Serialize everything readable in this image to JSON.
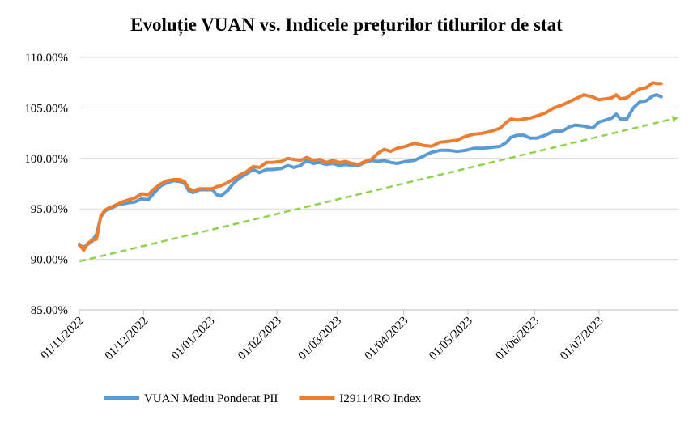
{
  "chart_data": {
    "type": "line",
    "title": "Evoluție VUAN vs. Indicele prețurilor titlurilor de stat",
    "xlabel": "",
    "ylabel": "",
    "ylim": [
      85,
      110
    ],
    "y_ticks": [
      85,
      90,
      95,
      100,
      105,
      110
    ],
    "y_tick_labels": [
      "85.00%",
      "90.00%",
      "95.00%",
      "100.00%",
      "105.00%",
      "110.00%"
    ],
    "x_range": [
      "2022-11-01",
      "2023-08-07"
    ],
    "x_ticks": [
      "2022-11-01",
      "2022-12-01",
      "2023-01-01",
      "2023-02-01",
      "2023-03-01",
      "2023-04-01",
      "2023-05-01",
      "2023-06-01",
      "2023-07-01"
    ],
    "x_tick_labels": [
      "01/11/2022",
      "01/12/2022",
      "01/01/2023",
      "01/02/2023",
      "01/03/2023",
      "01/04/2023",
      "01/05/2023",
      "01/06/2023",
      "01/07/2023"
    ],
    "grid": "horizontal",
    "legend": "bottom",
    "series": [
      {
        "name": "VUAN Mediu Ponderat PII",
        "color": "#5b9bd5",
        "points": [
          [
            "2022-11-01",
            91.4
          ],
          [
            "2022-11-03",
            91.2
          ],
          [
            "2022-11-05",
            91.5
          ],
          [
            "2022-11-07",
            91.8
          ],
          [
            "2022-11-09",
            92.5
          ],
          [
            "2022-11-11",
            94.2
          ],
          [
            "2022-11-13",
            94.8
          ],
          [
            "2022-11-15",
            95.0
          ],
          [
            "2022-11-17",
            95.2
          ],
          [
            "2022-11-19",
            95.4
          ],
          [
            "2022-11-21",
            95.5
          ],
          [
            "2022-11-24",
            95.6
          ],
          [
            "2022-11-27",
            95.7
          ],
          [
            "2022-11-30",
            96.0
          ],
          [
            "2022-12-03",
            95.9
          ],
          [
            "2022-12-06",
            96.6
          ],
          [
            "2022-12-09",
            97.3
          ],
          [
            "2022-12-12",
            97.6
          ],
          [
            "2022-12-15",
            97.8
          ],
          [
            "2022-12-18",
            97.7
          ],
          [
            "2022-12-20",
            97.5
          ],
          [
            "2022-12-22",
            96.8
          ],
          [
            "2022-12-24",
            96.6
          ],
          [
            "2022-12-27",
            96.9
          ],
          [
            "2022-12-30",
            96.9
          ],
          [
            "2023-01-02",
            96.9
          ],
          [
            "2023-01-04",
            96.4
          ],
          [
            "2023-01-06",
            96.3
          ],
          [
            "2023-01-09",
            96.8
          ],
          [
            "2023-01-12",
            97.6
          ],
          [
            "2023-01-15",
            98.1
          ],
          [
            "2023-01-18",
            98.5
          ],
          [
            "2023-01-21",
            98.9
          ],
          [
            "2023-01-24",
            98.6
          ],
          [
            "2023-01-27",
            98.9
          ],
          [
            "2023-01-30",
            98.9
          ],
          [
            "2023-02-03",
            99.0
          ],
          [
            "2023-02-06",
            99.3
          ],
          [
            "2023-02-09",
            99.1
          ],
          [
            "2023-02-12",
            99.3
          ],
          [
            "2023-02-15",
            99.8
          ],
          [
            "2023-02-18",
            99.5
          ],
          [
            "2023-02-21",
            99.6
          ],
          [
            "2023-02-24",
            99.4
          ],
          [
            "2023-02-27",
            99.5
          ],
          [
            "2023-03-02",
            99.3
          ],
          [
            "2023-03-05",
            99.4
          ],
          [
            "2023-03-08",
            99.3
          ],
          [
            "2023-03-11",
            99.3
          ],
          [
            "2023-03-14",
            99.6
          ],
          [
            "2023-03-17",
            99.8
          ],
          [
            "2023-03-20",
            99.7
          ],
          [
            "2023-03-23",
            99.8
          ],
          [
            "2023-03-26",
            99.6
          ],
          [
            "2023-03-29",
            99.5
          ],
          [
            "2023-04-02",
            99.7
          ],
          [
            "2023-04-06",
            99.8
          ],
          [
            "2023-04-10",
            100.2
          ],
          [
            "2023-04-14",
            100.6
          ],
          [
            "2023-04-18",
            100.8
          ],
          [
            "2023-04-22",
            100.8
          ],
          [
            "2023-04-26",
            100.7
          ],
          [
            "2023-04-30",
            100.8
          ],
          [
            "2023-05-04",
            101.0
          ],
          [
            "2023-05-08",
            101.0
          ],
          [
            "2023-05-12",
            101.1
          ],
          [
            "2023-05-16",
            101.2
          ],
          [
            "2023-05-19",
            101.6
          ],
          [
            "2023-05-21",
            102.1
          ],
          [
            "2023-05-24",
            102.3
          ],
          [
            "2023-05-27",
            102.3
          ],
          [
            "2023-05-30",
            102.0
          ],
          [
            "2023-06-02",
            102.0
          ],
          [
            "2023-06-06",
            102.3
          ],
          [
            "2023-06-10",
            102.7
          ],
          [
            "2023-06-14",
            102.7
          ],
          [
            "2023-06-17",
            103.1
          ],
          [
            "2023-06-20",
            103.3
          ],
          [
            "2023-06-24",
            103.2
          ],
          [
            "2023-06-28",
            103.0
          ],
          [
            "2023-07-01",
            103.6
          ],
          [
            "2023-07-04",
            103.8
          ],
          [
            "2023-07-07",
            104.0
          ],
          [
            "2023-07-09",
            104.4
          ],
          [
            "2023-07-11",
            103.9
          ],
          [
            "2023-07-14",
            103.9
          ],
          [
            "2023-07-17",
            105.0
          ],
          [
            "2023-07-20",
            105.6
          ],
          [
            "2023-07-23",
            105.7
          ],
          [
            "2023-07-26",
            106.2
          ],
          [
            "2023-07-28",
            106.3
          ],
          [
            "2023-07-30",
            106.1
          ]
        ]
      },
      {
        "name": "I29114RO Index",
        "color": "#ed7d31",
        "points": [
          [
            "2022-11-01",
            91.5
          ],
          [
            "2022-11-03",
            90.9
          ],
          [
            "2022-11-05",
            91.6
          ],
          [
            "2022-11-07",
            91.9
          ],
          [
            "2022-11-09",
            92.0
          ],
          [
            "2022-11-11",
            94.3
          ],
          [
            "2022-11-13",
            94.9
          ],
          [
            "2022-11-15",
            95.1
          ],
          [
            "2022-11-17",
            95.3
          ],
          [
            "2022-11-19",
            95.5
          ],
          [
            "2022-11-21",
            95.7
          ],
          [
            "2022-11-24",
            95.9
          ],
          [
            "2022-11-27",
            96.1
          ],
          [
            "2022-11-30",
            96.5
          ],
          [
            "2022-12-03",
            96.4
          ],
          [
            "2022-12-06",
            97.0
          ],
          [
            "2022-12-09",
            97.5
          ],
          [
            "2022-12-12",
            97.8
          ],
          [
            "2022-12-15",
            97.9
          ],
          [
            "2022-12-18",
            97.9
          ],
          [
            "2022-12-20",
            97.7
          ],
          [
            "2022-12-22",
            97.0
          ],
          [
            "2022-12-24",
            96.8
          ],
          [
            "2022-12-27",
            97.0
          ],
          [
            "2022-12-30",
            97.0
          ],
          [
            "2023-01-02",
            97.0
          ],
          [
            "2023-01-04",
            97.2
          ],
          [
            "2023-01-06",
            97.3
          ],
          [
            "2023-01-09",
            97.6
          ],
          [
            "2023-01-12",
            98.0
          ],
          [
            "2023-01-15",
            98.4
          ],
          [
            "2023-01-18",
            98.7
          ],
          [
            "2023-01-21",
            99.2
          ],
          [
            "2023-01-24",
            99.1
          ],
          [
            "2023-01-27",
            99.6
          ],
          [
            "2023-01-30",
            99.6
          ],
          [
            "2023-02-03",
            99.7
          ],
          [
            "2023-02-06",
            100.0
          ],
          [
            "2023-02-09",
            99.9
          ],
          [
            "2023-02-12",
            99.8
          ],
          [
            "2023-02-15",
            100.1
          ],
          [
            "2023-02-18",
            99.8
          ],
          [
            "2023-02-21",
            99.9
          ],
          [
            "2023-02-24",
            99.6
          ],
          [
            "2023-02-27",
            99.8
          ],
          [
            "2023-03-02",
            99.6
          ],
          [
            "2023-03-05",
            99.7
          ],
          [
            "2023-03-08",
            99.5
          ],
          [
            "2023-03-11",
            99.4
          ],
          [
            "2023-03-14",
            99.7
          ],
          [
            "2023-03-17",
            99.9
          ],
          [
            "2023-03-20",
            100.5
          ],
          [
            "2023-03-23",
            100.9
          ],
          [
            "2023-03-26",
            100.7
          ],
          [
            "2023-03-29",
            101.0
          ],
          [
            "2023-04-02",
            101.2
          ],
          [
            "2023-04-06",
            101.5
          ],
          [
            "2023-04-10",
            101.3
          ],
          [
            "2023-04-14",
            101.2
          ],
          [
            "2023-04-18",
            101.6
          ],
          [
            "2023-04-22",
            101.7
          ],
          [
            "2023-04-26",
            101.8
          ],
          [
            "2023-04-30",
            102.2
          ],
          [
            "2023-05-04",
            102.4
          ],
          [
            "2023-05-08",
            102.5
          ],
          [
            "2023-05-12",
            102.7
          ],
          [
            "2023-05-16",
            103.0
          ],
          [
            "2023-05-19",
            103.6
          ],
          [
            "2023-05-21",
            103.9
          ],
          [
            "2023-05-24",
            103.8
          ],
          [
            "2023-05-27",
            103.9
          ],
          [
            "2023-05-30",
            104.0
          ],
          [
            "2023-06-02",
            104.2
          ],
          [
            "2023-06-06",
            104.5
          ],
          [
            "2023-06-10",
            105.0
          ],
          [
            "2023-06-14",
            105.3
          ],
          [
            "2023-06-17",
            105.6
          ],
          [
            "2023-06-20",
            105.9
          ],
          [
            "2023-06-24",
            106.3
          ],
          [
            "2023-06-28",
            106.1
          ],
          [
            "2023-07-01",
            105.8
          ],
          [
            "2023-07-04",
            105.9
          ],
          [
            "2023-07-07",
            106.0
          ],
          [
            "2023-07-09",
            106.3
          ],
          [
            "2023-07-11",
            105.9
          ],
          [
            "2023-07-14",
            106.0
          ],
          [
            "2023-07-17",
            106.5
          ],
          [
            "2023-07-20",
            106.9
          ],
          [
            "2023-07-23",
            107.0
          ],
          [
            "2023-07-26",
            107.5
          ],
          [
            "2023-07-28",
            107.4
          ],
          [
            "2023-07-30",
            107.4
          ]
        ]
      },
      {
        "name": "",
        "color": "#92d050",
        "style": "dashed-arrow",
        "points": [
          [
            "2022-11-01",
            89.8
          ],
          [
            "2023-08-06",
            104.0
          ]
        ]
      }
    ]
  }
}
